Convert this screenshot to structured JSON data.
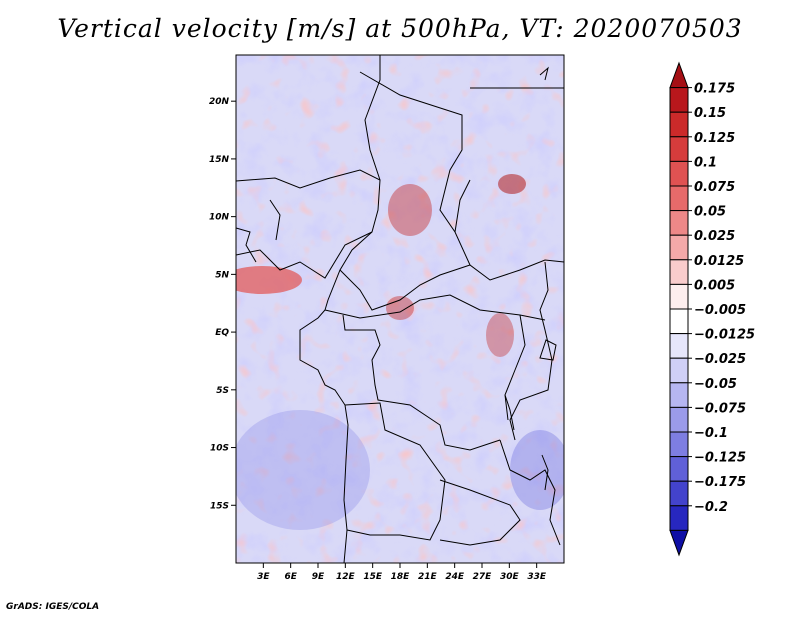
{
  "title": "Vertical velocity [m/s] at 500hPa, VT: 2020070503",
  "credit": "GrADS: IGES/COLA",
  "chart_data": {
    "type": "heatmap",
    "variable": "Vertical velocity",
    "units": "m/s",
    "level": "500hPa",
    "valid_time": "2020070503",
    "lon_range": [
      0,
      36
    ],
    "lat_range": [
      -20,
      24
    ],
    "x_tick_labels": [
      "3E",
      "6E",
      "9E",
      "12E",
      "15E",
      "18E",
      "21E",
      "24E",
      "27E",
      "30E",
      "33E"
    ],
    "x_tick_values": [
      3,
      6,
      9,
      12,
      15,
      18,
      21,
      24,
      27,
      30,
      33
    ],
    "y_tick_labels": [
      "20N",
      "15N",
      "10N",
      "5N",
      "EQ",
      "5S",
      "10S",
      "15S"
    ],
    "y_tick_values": [
      20,
      15,
      10,
      5,
      0,
      -5,
      -10,
      -15
    ],
    "colorbar_labels": [
      "0.175",
      "0.15",
      "0.125",
      "0.1",
      "0.075",
      "0.05",
      "0.025",
      "0.0125",
      "0.005",
      "-0.005",
      "-0.0125",
      "-0.025",
      "-0.05",
      "-0.075",
      "-0.1",
      "-0.125",
      "-0.175",
      "-0.2"
    ],
    "colorbar_colors": [
      "#a50f15",
      "#b8171c",
      "#cb2a2a",
      "#d63c3c",
      "#df5252",
      "#e76a6a",
      "#ee8888",
      "#f4a9a9",
      "#f9cccc",
      "#fdeeee",
      "#ffffff",
      "#e6e6fb",
      "#cfcff6",
      "#b6b6f1",
      "#9b9bea",
      "#7e7ee2",
      "#6060d8",
      "#4343cc",
      "#2727bf",
      "#0f0fa5"
    ],
    "legend_position": "right"
  }
}
